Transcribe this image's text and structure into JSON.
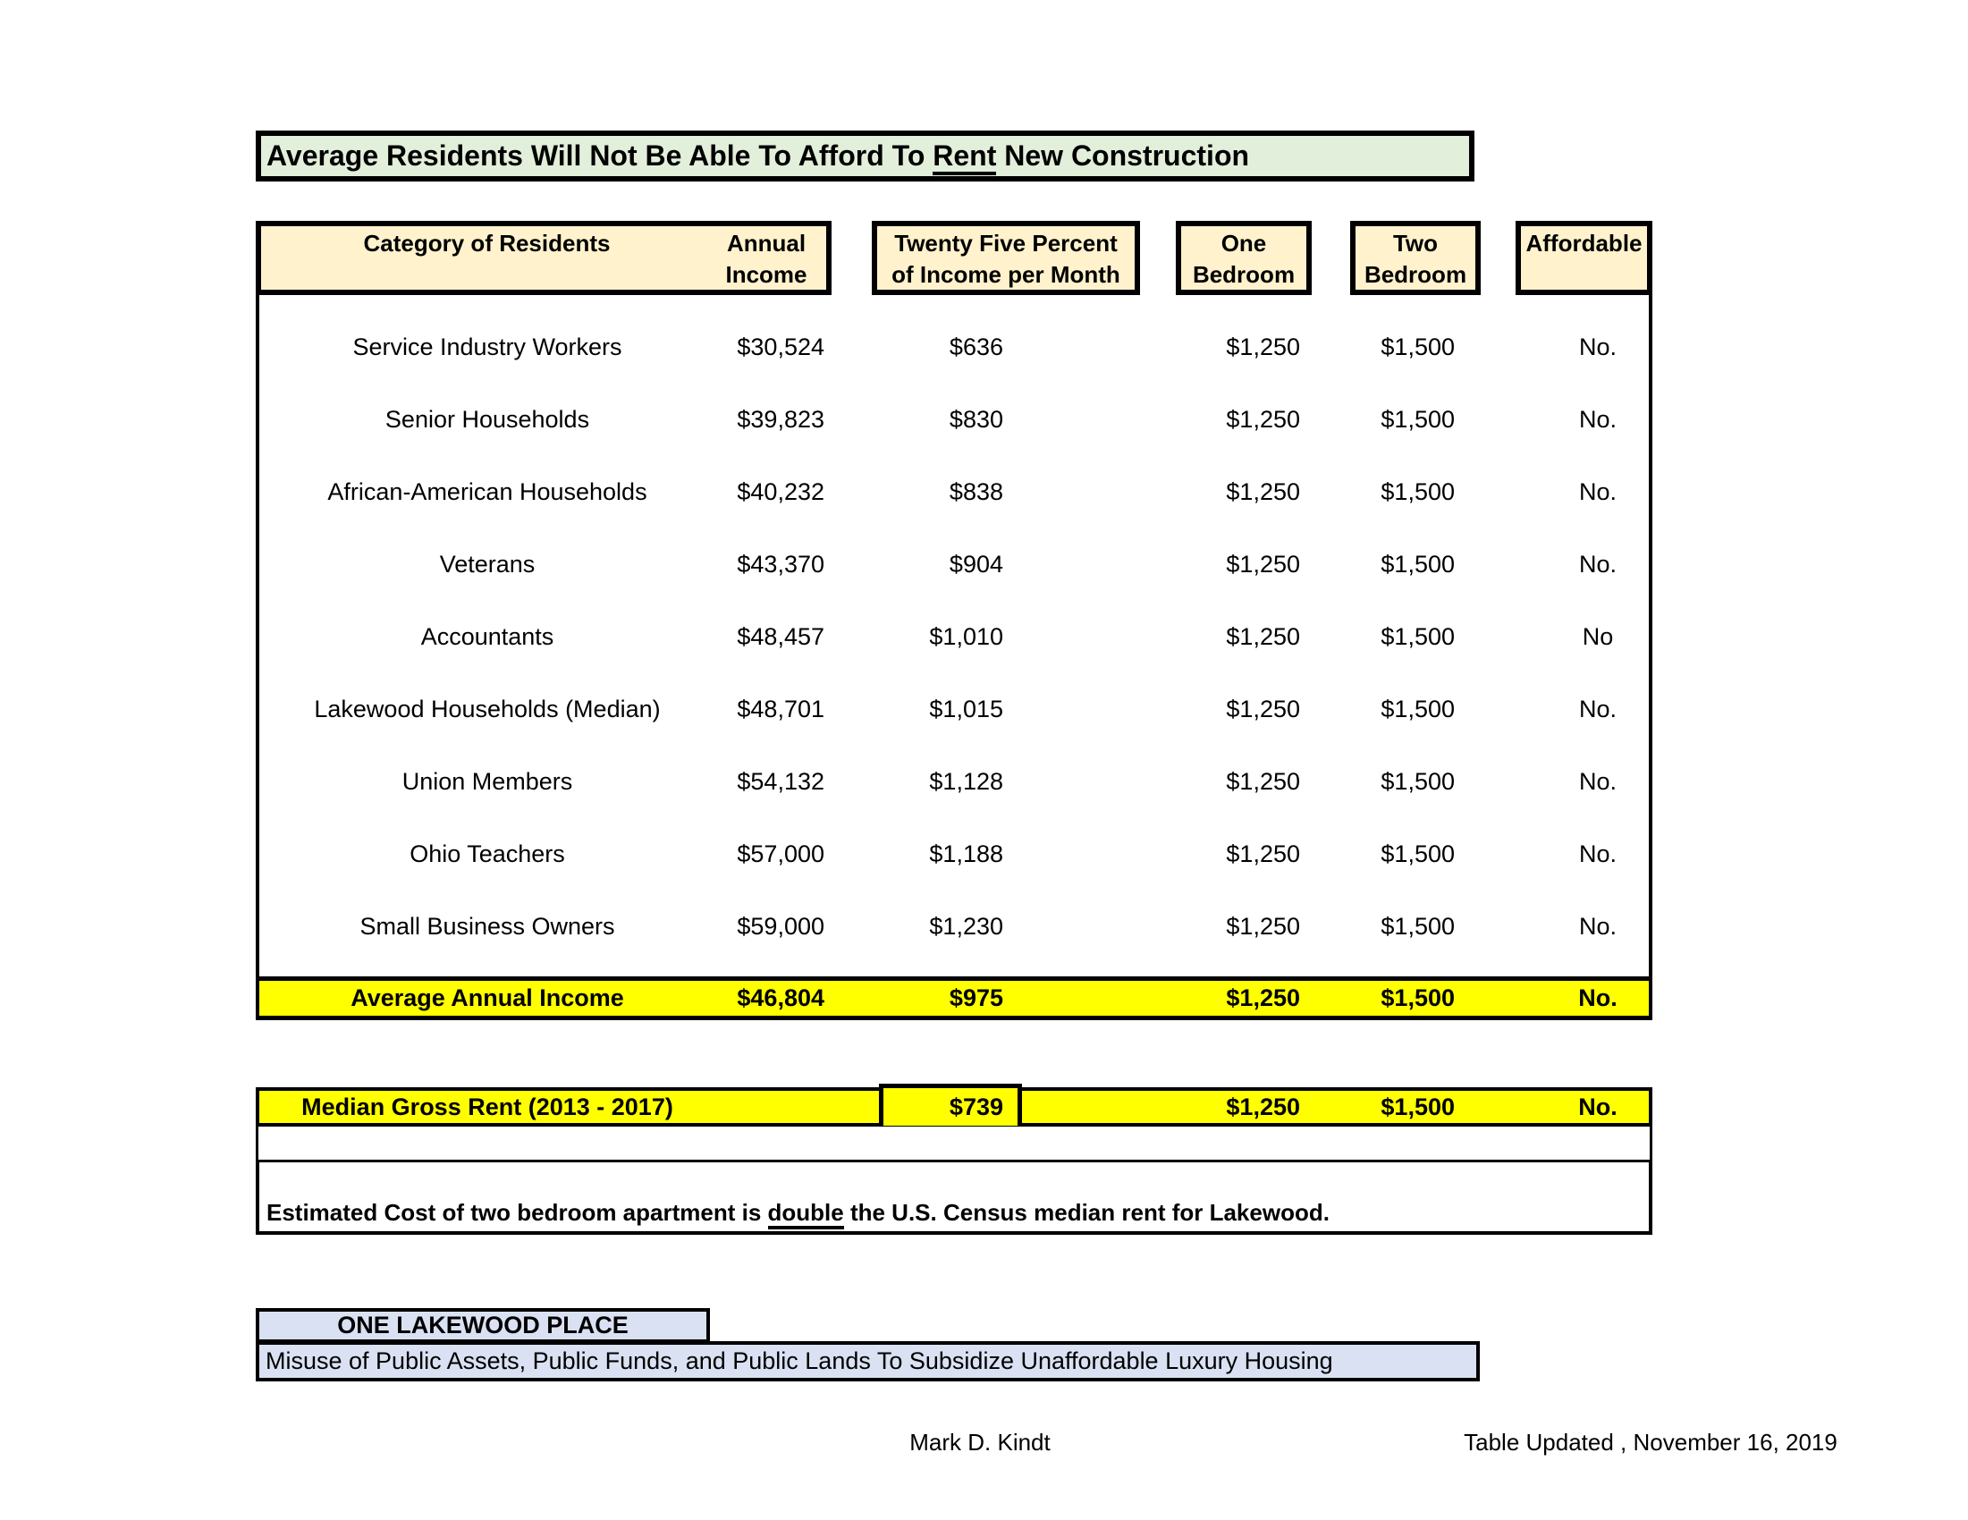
{
  "colors": {
    "title-bg": "#E2EFDA",
    "header-bg": "#FFF2CC",
    "highlight-yellow": "#FFFF00",
    "callout-bg": "#D9E1F2",
    "border": "#000000",
    "text": "#000000"
  },
  "title": {
    "prefix": "Average Residents Will Not Be Able To Afford To ",
    "underlined": "Rent",
    "suffix": " New Construction"
  },
  "table": {
    "headers": {
      "category": "Category of Residents",
      "annual_income": "Annual\nIncome",
      "pct": "Twenty Five Percent\nof Income per Month",
      "one_bedroom": "One\nBedroom",
      "two_bedroom": "Two\nBedroom",
      "affordable": "Affordable"
    },
    "rows": [
      {
        "category": "Service Industry Workers",
        "annual": "$30,524",
        "pct": "$636",
        "one": "$1,250",
        "two": "$1,500",
        "affordable": "No."
      },
      {
        "category": "Senior Households",
        "annual": "$39,823",
        "pct": "$830",
        "one": "$1,250",
        "two": "$1,500",
        "affordable": "No."
      },
      {
        "category": "African-American Households",
        "annual": "$40,232",
        "pct": "$838",
        "one": "$1,250",
        "two": "$1,500",
        "affordable": "No."
      },
      {
        "category": "Veterans",
        "annual": "$43,370",
        "pct": "$904",
        "one": "$1,250",
        "two": "$1,500",
        "affordable": "No."
      },
      {
        "category": "Accountants",
        "annual": "$48,457",
        "pct": "$1,010",
        "one": "$1,250",
        "two": "$1,500",
        "affordable": "No"
      },
      {
        "category": "Lakewood Households (Median)",
        "annual": "$48,701",
        "pct": "$1,015",
        "one": "$1,250",
        "two": "$1,500",
        "affordable": "No."
      },
      {
        "category": "Union Members",
        "annual": "$54,132",
        "pct": "$1,128",
        "one": "$1,250",
        "two": "$1,500",
        "affordable": "No."
      },
      {
        "category": "Ohio Teachers",
        "annual": "$57,000",
        "pct": "$1,188",
        "one": "$1,250",
        "two": "$1,500",
        "affordable": "No."
      },
      {
        "category": "Small Business Owners",
        "annual": "$59,000",
        "pct": "$1,230",
        "one": "$1,250",
        "two": "$1,500",
        "affordable": "No."
      }
    ],
    "average_row": {
      "category": "Average Annual Income",
      "annual": "$46,804",
      "pct": "$975",
      "one": "$1,250",
      "two": "$1,500",
      "affordable": "No."
    }
  },
  "median_row": {
    "category": "Median Gross Rent (2013 - 2017)",
    "pct": "$739",
    "one": "$1,250",
    "two": "$1,500",
    "affordable": "No."
  },
  "note": {
    "prefix": "Estimated Cost of two bedroom apartment is ",
    "underlined": "double",
    "suffix": " the U.S. Census median rent for Lakewood."
  },
  "callout": {
    "heading": "ONE LAKEWOOD PLACE",
    "subheading": "Misuse of Public Assets, Public Funds, and Public Lands To Subsidize Unaffordable Luxury Housing"
  },
  "footer": {
    "author": "Mark D. Kindt",
    "updated": "Table Updated , November 16, 2019"
  }
}
